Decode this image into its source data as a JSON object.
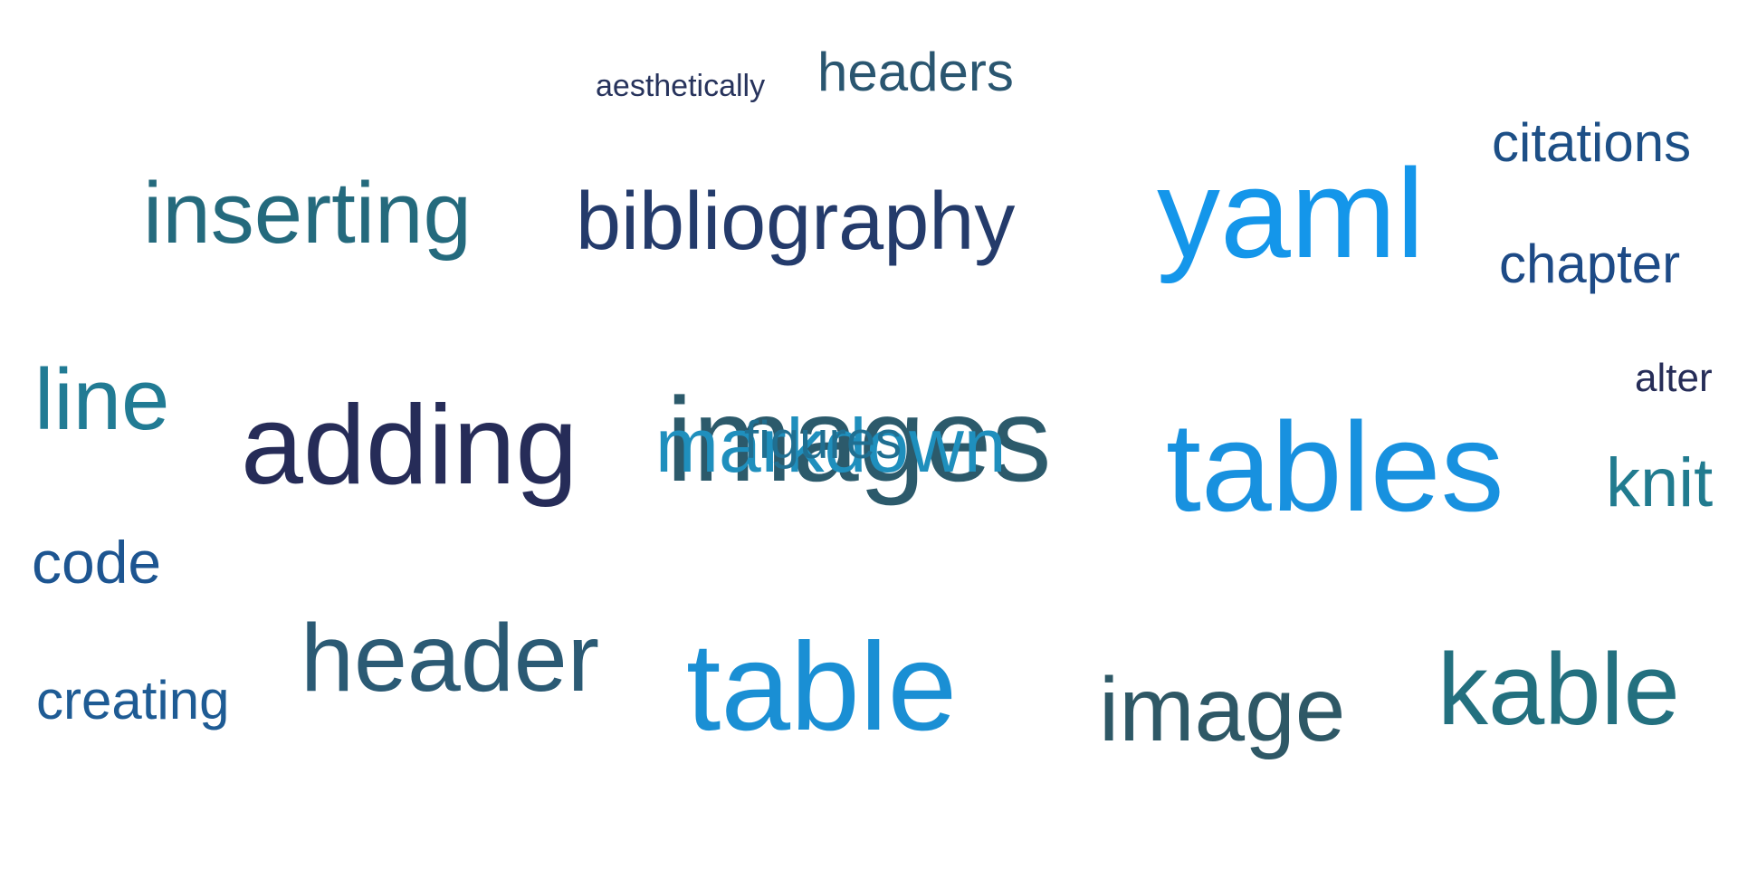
{
  "words": [
    {
      "text": "aesthetically",
      "color": "#27335c"
    },
    {
      "text": "headers",
      "color": "#2a5670"
    },
    {
      "text": "citations",
      "color": "#1d4f86"
    },
    {
      "text": "inserting",
      "color": "#246a7d"
    },
    {
      "text": "bibliography",
      "color": "#243b6b"
    },
    {
      "text": "yaml",
      "color": "#1496ea"
    },
    {
      "text": "chapter",
      "color": "#1d4a86"
    },
    {
      "text": "line",
      "color": "#217b94"
    },
    {
      "text": "adding",
      "color": "#262c58"
    },
    {
      "text": "images",
      "color": "#2c5a6b"
    },
    {
      "text": "markdown",
      "color": "#1f8fbd"
    },
    {
      "text": "figures",
      "color": "#206f91"
    },
    {
      "text": "tables",
      "color": "#1891df"
    },
    {
      "text": "alter",
      "color": "#262d58"
    },
    {
      "text": "knit",
      "color": "#217b8f"
    },
    {
      "text": "code",
      "color": "#1d5591"
    },
    {
      "text": "header",
      "color": "#2b5a74"
    },
    {
      "text": "table",
      "color": "#1a8fd4"
    },
    {
      "text": "creating",
      "color": "#1e5b94"
    },
    {
      "text": "image",
      "color": "#2e5866"
    },
    {
      "text": "kable",
      "color": "#23707f"
    }
  ]
}
